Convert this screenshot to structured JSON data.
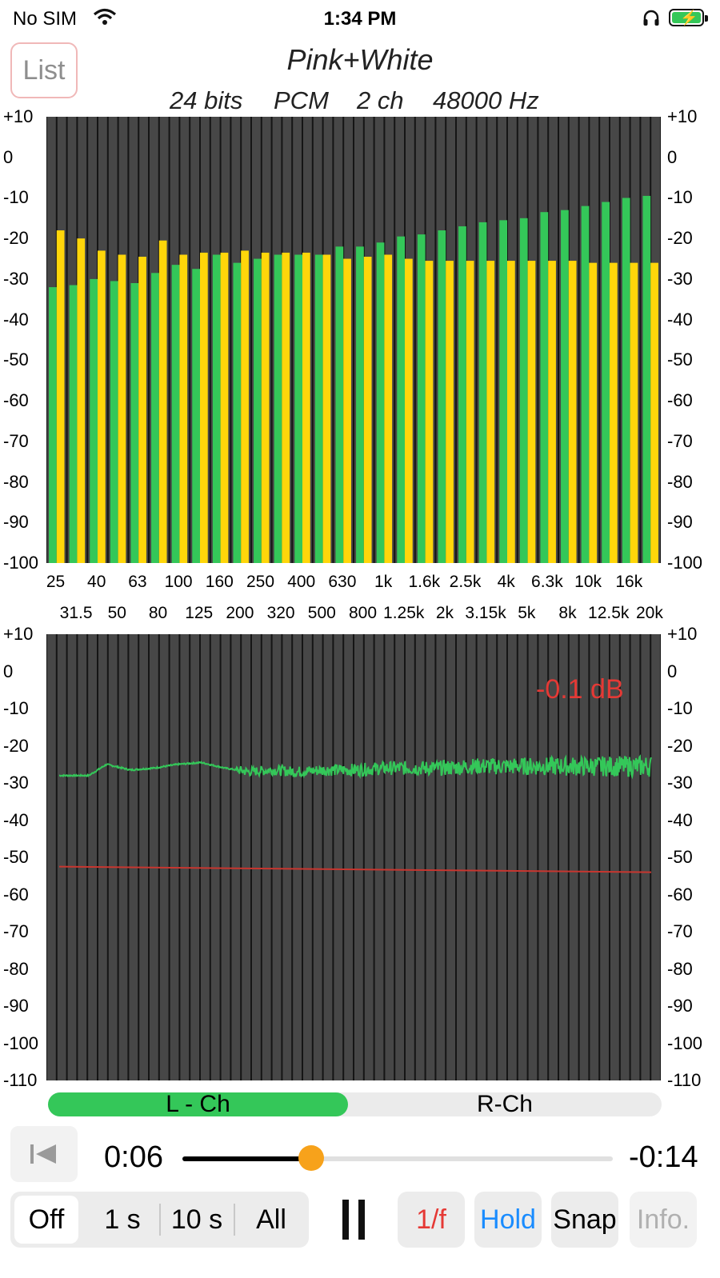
{
  "status_bar": {
    "carrier": "No SIM",
    "time": "1:34 PM"
  },
  "header": {
    "list_button": "List",
    "title": "Pink+White",
    "format": {
      "bits": "24 bits",
      "codec": "PCM",
      "channels": "2 ch",
      "rate": "48000 Hz"
    }
  },
  "colors": {
    "green": "#34c759",
    "yellow": "#ffd60a",
    "plot_bg": "#474747",
    "grid": "#111111",
    "red": "#e53935",
    "orange": "#f7a21b",
    "blue": "#1a8cff"
  },
  "band_chart": {
    "y_ticks": [
      "+10",
      "0",
      "-10",
      "-20",
      "-30",
      "-40",
      "-50",
      "-60",
      "-70",
      "-80",
      "-90",
      "-100"
    ],
    "x_labels_row1": [
      "25",
      "40",
      "63",
      "100",
      "160",
      "250",
      "400",
      "630",
      "1k",
      "1.6k",
      "2.5k",
      "4k",
      "6.3k",
      "10k",
      "16k"
    ],
    "x_labels_row2": [
      "31.5",
      "50",
      "80",
      "125",
      "200",
      "320",
      "500",
      "800",
      "1.25k",
      "2k",
      "3.15k",
      "5k",
      "8k",
      "12.5k",
      "20k"
    ]
  },
  "spectrum_chart": {
    "y_ticks": [
      "+10",
      "0",
      "-10",
      "-20",
      "-30",
      "-40",
      "-50",
      "-60",
      "-70",
      "-80",
      "-90",
      "-100",
      "-110"
    ],
    "peak_label": "-0.1 dB"
  },
  "chart_data": [
    {
      "type": "bar",
      "ylim": [
        -100,
        10
      ],
      "categories": [
        "25",
        "31.5",
        "40",
        "50",
        "63",
        "80",
        "100",
        "125",
        "160",
        "200",
        "250",
        "320",
        "400",
        "500",
        "630",
        "800",
        "1k",
        "1.25k",
        "1.6k",
        "2k",
        "2.5k",
        "3.15k",
        "4k",
        "5k",
        "6.3k",
        "8k",
        "10k",
        "12.5k",
        "16k",
        "20k"
      ],
      "series": [
        {
          "values": [
            -32,
            -31.5,
            -30,
            -30.5,
            -31,
            -28.5,
            -26.5,
            -27.5,
            -24,
            -26,
            -25,
            -24,
            -24,
            -24,
            -22,
            -22,
            -21,
            -19.5,
            -19,
            -18,
            -17,
            -16,
            -15.5,
            -15,
            -13.5,
            -13,
            -12,
            -11,
            -10,
            -9.5
          ]
        },
        {
          "values": [
            -18,
            -20,
            -23,
            -24,
            -24.5,
            -20.5,
            -24,
            -23.5,
            -23.5,
            -23,
            -23.5,
            -23.5,
            -23.5,
            -24,
            -25,
            -24.5,
            -24,
            -25,
            -25.5,
            -25.5,
            -25.5,
            -25.5,
            -25.5,
            -25.5,
            -25.5,
            -25.5,
            -26,
            -26,
            -26,
            -26
          ]
        }
      ]
    },
    {
      "type": "line",
      "ylim": [
        -110,
        10
      ],
      "series": [
        {
          "x": [
            0,
            0.05,
            0.08,
            0.12,
            0.16,
            0.2,
            0.24,
            0.28,
            0.32,
            0.36,
            0.4,
            0.45,
            0.5,
            0.55,
            0.6,
            0.65,
            0.7,
            0.75,
            0.8,
            0.85,
            0.9,
            0.95,
            1.0
          ],
          "values": [
            -28,
            -28,
            -25,
            -26.5,
            -26,
            -25,
            -24.5,
            -26,
            -27,
            -26.5,
            -27,
            -26.5,
            -26.5,
            -26,
            -26,
            -26,
            -25.5,
            -25.5,
            -25.5,
            -25.5,
            -25.5,
            -25.5,
            -25.5
          ]
        },
        {
          "x": [
            0,
            1
          ],
          "values": [
            -52.5,
            -54
          ]
        }
      ]
    }
  ],
  "channels": {
    "left": "L - Ch",
    "right": "R-Ch"
  },
  "transport": {
    "elapsed": "0:06",
    "remaining": "-0:14",
    "progress": 0.3
  },
  "averaging": {
    "options": [
      "Off",
      "1 s",
      "10 s",
      "All"
    ],
    "selected": "Off"
  },
  "buttons": {
    "pink_weight": "1/f",
    "hold": "Hold",
    "snap": "Snap",
    "info": "Info."
  }
}
